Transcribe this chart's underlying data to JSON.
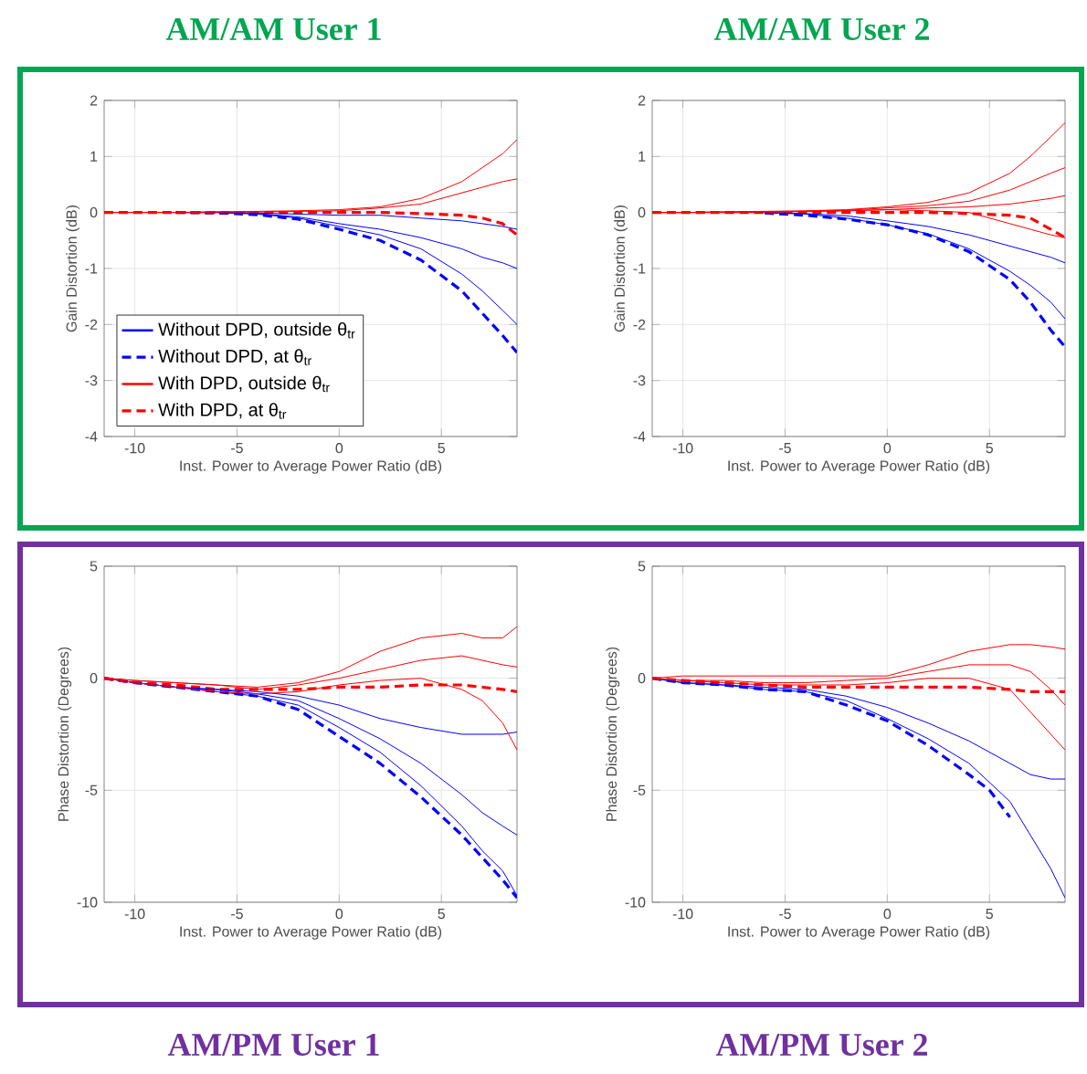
{
  "chart_data": [
    {
      "type": "line",
      "title": "AM/AM User 1",
      "xlabel": "Inst. Power to Average Power Ratio (dB)",
      "ylabel": "Gain Distortion (dB)",
      "xlim": [
        -11.5,
        8.7
      ],
      "ylim": [
        -4,
        2
      ],
      "xticks": [
        -10,
        -5,
        0,
        5
      ],
      "yticks": [
        -4,
        -3,
        -2,
        -1,
        0,
        1,
        2
      ],
      "grid": true,
      "legend": "bottom left",
      "x": [
        -11.5,
        -10,
        -8,
        -6,
        -4,
        -2,
        0,
        2,
        4,
        6,
        7,
        8,
        8.7
      ],
      "series": [
        {
          "name": "Without DPD, outside θ$_{tr}$",
          "color": "#0000ff",
          "line_style": "solid",
          "values": [
            null,
            null,
            0,
            0,
            -0.02,
            -0.08,
            -0.2,
            -0.3,
            -0.45,
            -0.65,
            -0.8,
            -0.9,
            -1.0
          ]
        },
        {
          "color": "#0000ff",
          "line_style": "solid",
          "values": [
            null,
            null,
            0,
            0,
            -0.01,
            -0.03,
            -0.05,
            -0.05,
            -0.1,
            -0.15,
            -0.2,
            -0.25,
            -0.3
          ]
        },
        {
          "color": "#0000ff",
          "line_style": "solid",
          "values": [
            null,
            null,
            0,
            0,
            -0.03,
            -0.1,
            -0.25,
            -0.4,
            -0.65,
            -1.1,
            -1.4,
            -1.75,
            -2.0
          ]
        },
        {
          "name": "Without DPD, at θ$_{tr}$",
          "color": "#0000ff",
          "line_style": "dashed",
          "values": [
            null,
            null,
            0,
            -0.01,
            -0.04,
            -0.12,
            -0.3,
            -0.5,
            -0.85,
            -1.4,
            -1.8,
            -2.2,
            -2.5
          ]
        },
        {
          "name": "With DPD, outside θ$_{tr}$",
          "color": "#ff0000",
          "line_style": "solid",
          "values": [
            0,
            0,
            0,
            0.01,
            0.02,
            0.03,
            0.05,
            0.1,
            0.25,
            0.55,
            0.8,
            1.05,
            1.3
          ]
        },
        {
          "color": "#ff0000",
          "line_style": "solid",
          "values": [
            0,
            0,
            0,
            0.01,
            0.01,
            0.02,
            0.03,
            0.08,
            0.15,
            0.35,
            0.45,
            0.55,
            0.6
          ]
        },
        {
          "name": "With DPD, at θ$_{tr}$",
          "color": "#ff0000",
          "line_style": "dashed",
          "values": [
            0,
            0,
            0,
            0,
            0,
            0,
            0,
            0,
            -0.02,
            -0.05,
            -0.1,
            -0.2,
            -0.4
          ]
        }
      ]
    },
    {
      "type": "line",
      "title": "AM/AM User 2",
      "xlabel": "Inst. Power to Average Power Ratio (dB)",
      "ylabel": "Gain Distortion (dB)",
      "xlim": [
        -11.5,
        8.7
      ],
      "ylim": [
        -4,
        2
      ],
      "xticks": [
        -10,
        -5,
        0,
        5
      ],
      "yticks": [
        -4,
        -3,
        -2,
        -1,
        0,
        1,
        2
      ],
      "grid": true,
      "x": [
        -11.5,
        -10,
        -8,
        -6,
        -4,
        -2,
        0,
        2,
        4,
        6,
        7,
        8,
        8.7
      ],
      "series": [
        {
          "color": "#0000ff",
          "line_style": "solid",
          "values": [
            null,
            null,
            0,
            0,
            -0.02,
            -0.06,
            -0.15,
            -0.25,
            -0.4,
            -0.6,
            -0.7,
            -0.8,
            -0.9
          ]
        },
        {
          "color": "#0000ff",
          "line_style": "solid",
          "values": [
            null,
            null,
            0,
            0,
            -0.03,
            -0.1,
            -0.22,
            -0.38,
            -0.65,
            -1.05,
            -1.3,
            -1.6,
            -1.9
          ]
        },
        {
          "color": "#0000ff",
          "line_style": "dashed",
          "values": [
            null,
            null,
            null,
            -0.01,
            -0.05,
            -0.12,
            -0.22,
            -0.4,
            -0.7,
            -1.2,
            -1.6,
            -2.1,
            -2.4
          ]
        },
        {
          "color": "#ff0000",
          "line_style": "solid",
          "values": [
            0,
            0,
            0.01,
            0.02,
            0.03,
            0.05,
            0.1,
            0.18,
            0.35,
            0.7,
            1.0,
            1.35,
            1.6
          ]
        },
        {
          "color": "#ff0000",
          "line_style": "solid",
          "values": [
            0,
            0,
            0.01,
            0.01,
            0.02,
            0.04,
            0.08,
            0.12,
            0.2,
            0.4,
            0.55,
            0.7,
            0.8
          ]
        },
        {
          "color": "#ff0000",
          "line_style": "solid",
          "values": [
            0,
            0,
            0,
            0.01,
            0.02,
            0.03,
            0.05,
            0.08,
            0.1,
            0.15,
            0.2,
            0.25,
            0.3
          ]
        },
        {
          "color": "#ff0000",
          "line_style": "solid",
          "values": [
            0,
            0,
            0,
            0.01,
            0.02,
            0.03,
            0.05,
            0.03,
            0,
            -0.2,
            -0.3,
            -0.4,
            -0.45
          ]
        },
        {
          "color": "#ff0000",
          "line_style": "dashed",
          "values": [
            0,
            0,
            0,
            0,
            0,
            0,
            0,
            0,
            -0.02,
            -0.05,
            -0.1,
            -0.3,
            -0.45
          ]
        }
      ]
    },
    {
      "type": "line",
      "title": "AM/PM User 1",
      "xlabel": "Inst. Power to Average Power Ratio (dB)",
      "ylabel": "Phase Distortion (Degrees)",
      "xlim": [
        -11.5,
        8.7
      ],
      "ylim": [
        -10,
        5
      ],
      "xticks": [
        -10,
        -5,
        0,
        5
      ],
      "yticks": [
        -10,
        -5,
        0,
        5
      ],
      "grid": true,
      "x": [
        -11.5,
        -10,
        -8,
        -6,
        -4,
        -2,
        0,
        2,
        4,
        6,
        7,
        8,
        8.7
      ],
      "series": [
        {
          "color": "#0000ff",
          "line_style": "solid",
          "values": [
            0,
            -0.2,
            -0.4,
            -0.5,
            -0.6,
            -0.8,
            -1.2,
            -1.8,
            -2.2,
            -2.5,
            -2.5,
            -2.5,
            -2.4
          ]
        },
        {
          "color": "#0000ff",
          "line_style": "solid",
          "values": [
            0,
            -0.2,
            -0.4,
            -0.5,
            -0.7,
            -1.0,
            -1.8,
            -2.7,
            -3.8,
            -5.2,
            -6.0,
            -6.6,
            -7.0
          ]
        },
        {
          "color": "#0000ff",
          "line_style": "solid",
          "values": [
            0,
            -0.2,
            -0.4,
            -0.6,
            -0.8,
            -1.2,
            -2.2,
            -3.3,
            -4.8,
            -6.6,
            -7.7,
            -8.6,
            -9.7
          ]
        },
        {
          "color": "#0000ff",
          "line_style": "dashed",
          "values": [
            0,
            -0.2,
            -0.4,
            -0.6,
            -0.8,
            -1.4,
            -2.6,
            -3.8,
            -5.3,
            -7.0,
            -8.0,
            -9.0,
            -9.8
          ]
        },
        {
          "color": "#ff0000",
          "line_style": "solid",
          "values": [
            0,
            -0.1,
            -0.2,
            -0.3,
            -0.4,
            -0.2,
            0.3,
            1.2,
            1.8,
            2.0,
            1.8,
            1.8,
            2.3
          ]
        },
        {
          "color": "#ff0000",
          "line_style": "solid",
          "values": [
            0,
            -0.1,
            -0.2,
            -0.3,
            -0.5,
            -0.3,
            0,
            0.4,
            0.8,
            1.0,
            0.8,
            0.6,
            0.5
          ]
        },
        {
          "color": "#ff0000",
          "line_style": "solid",
          "values": [
            0,
            -0.2,
            -0.4,
            -0.6,
            -0.7,
            -0.6,
            -0.3,
            -0.1,
            0,
            -0.5,
            -1.0,
            -2.0,
            -3.2
          ]
        },
        {
          "color": "#ff0000",
          "line_style": "dashed",
          "values": [
            0,
            -0.2,
            -0.3,
            -0.5,
            -0.5,
            -0.5,
            -0.4,
            -0.4,
            -0.3,
            -0.3,
            -0.4,
            -0.5,
            -0.6
          ]
        }
      ]
    },
    {
      "type": "line",
      "title": "AM/PM User 2",
      "xlabel": "Inst. Power to Average Power Ratio (dB)",
      "ylabel": "Phase Distortion (Degrees)",
      "xlim": [
        -11.5,
        8.7
      ],
      "ylim": [
        -10,
        5
      ],
      "xticks": [
        -10,
        -5,
        0,
        5
      ],
      "yticks": [
        -10,
        -5,
        0,
        5
      ],
      "grid": true,
      "x": [
        -11.5,
        -10,
        -8,
        -6,
        -4,
        -2,
        0,
        2,
        4,
        6,
        7,
        8,
        8.7
      ],
      "series": [
        {
          "color": "#0000ff",
          "line_style": "solid",
          "values": [
            0,
            -0.2,
            -0.3,
            -0.4,
            -0.5,
            -0.8,
            -1.3,
            -2.0,
            -2.8,
            -3.8,
            -4.3,
            -4.5,
            -4.5
          ]
        },
        {
          "color": "#0000ff",
          "line_style": "solid",
          "values": [
            0,
            -0.2,
            -0.3,
            -0.5,
            -0.6,
            -1.0,
            -1.8,
            -2.7,
            -3.8,
            -5.5,
            -7.0,
            -8.5,
            -9.8
          ]
        },
        {
          "color": "#0000ff",
          "line_style": "dashed",
          "x": [
            -11.5,
            -10,
            -8,
            -6,
            -4,
            -2,
            0,
            2,
            4,
            5,
            6
          ],
          "values": [
            0,
            -0.2,
            -0.3,
            -0.5,
            -0.6,
            -1.2,
            -1.9,
            -3.0,
            -4.3,
            -5.0,
            -6.2
          ]
        },
        {
          "color": "#ff0000",
          "line_style": "solid",
          "values": [
            0,
            0.1,
            0.1,
            0.1,
            0.1,
            0.1,
            0.1,
            0.6,
            1.2,
            1.5,
            1.5,
            1.4,
            1.3
          ]
        },
        {
          "color": "#ff0000",
          "line_style": "solid",
          "values": [
            0,
            -0.1,
            -0.1,
            -0.2,
            -0.2,
            -0.1,
            0,
            0.3,
            0.6,
            0.6,
            0.3,
            -0.5,
            -1.2
          ]
        },
        {
          "color": "#ff0000",
          "line_style": "solid",
          "values": [
            0,
            -0.1,
            -0.2,
            -0.3,
            -0.3,
            -0.3,
            -0.2,
            0,
            0,
            -0.5,
            -1.5,
            -2.5,
            -3.2
          ]
        },
        {
          "color": "#ff0000",
          "line_style": "dashed",
          "values": [
            0,
            -0.1,
            -0.2,
            -0.3,
            -0.4,
            -0.4,
            -0.4,
            -0.4,
            -0.4,
            -0.5,
            -0.6,
            -0.6,
            -0.6
          ]
        }
      ]
    }
  ]
}
